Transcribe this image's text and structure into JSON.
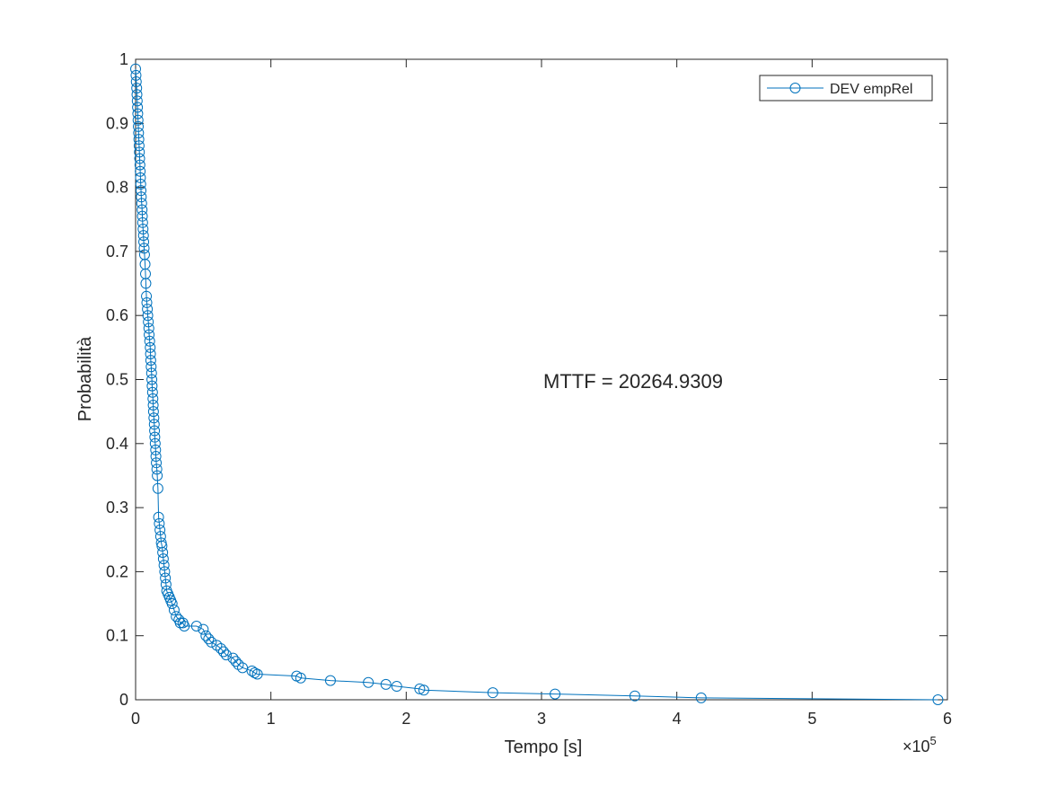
{
  "chart_data": {
    "type": "line",
    "xlabel": "Tempo [s]",
    "ylabel": "Probabilità",
    "x_exponent_label": "×10",
    "x_exponent": "5",
    "annotation": "MTTF = 20264.9309",
    "legend": {
      "label": "DEV empRel",
      "placement": "top-right"
    },
    "xlim": [
      0,
      6
    ],
    "ylim": [
      0,
      1
    ],
    "x_scale": 100000,
    "xticks": [
      0,
      1,
      2,
      3,
      4,
      5,
      6
    ],
    "yticks": [
      0,
      0.1,
      0.2,
      0.3,
      0.4,
      0.5,
      0.6,
      0.7,
      0.8,
      0.9,
      1
    ],
    "xtick_labels": [
      "0",
      "1",
      "2",
      "3",
      "4",
      "5",
      "6"
    ],
    "ytick_labels": [
      "0",
      "0.1",
      "0.2",
      "0.3",
      "0.4",
      "0.5",
      "0.6",
      "0.7",
      "0.8",
      "0.9",
      "1"
    ],
    "colors": {
      "series": "#0072BD",
      "axes": "#262626"
    },
    "grid": false,
    "series": [
      {
        "name": "DEV empRel",
        "marker": "circle",
        "x": [
          0,
          0.003,
          0.005,
          0.008,
          0.01,
          0.012,
          0.014,
          0.016,
          0.018,
          0.02,
          0.022,
          0.024,
          0.026,
          0.028,
          0.03,
          0.032,
          0.034,
          0.036,
          0.038,
          0.04,
          0.042,
          0.045,
          0.048,
          0.05,
          0.052,
          0.055,
          0.058,
          0.06,
          0.063,
          0.066,
          0.07,
          0.073,
          0.076,
          0.08,
          0.083,
          0.087,
          0.09,
          0.094,
          0.098,
          0.1,
          0.104,
          0.108,
          0.11,
          0.112,
          0.115,
          0.118,
          0.12,
          0.122,
          0.125,
          0.128,
          0.13,
          0.132,
          0.135,
          0.138,
          0.14,
          0.142,
          0.145,
          0.148,
          0.15,
          0.153,
          0.157,
          0.16,
          0.165,
          0.17,
          0.175,
          0.18,
          0.185,
          0.19,
          0.195,
          0.2,
          0.205,
          0.21,
          0.215,
          0.22,
          0.225,
          0.23,
          0.24,
          0.25,
          0.26,
          0.27,
          0.285,
          0.3,
          0.32,
          0.33,
          0.35,
          0.36,
          0.45,
          0.5,
          0.52,
          0.54,
          0.56,
          0.6,
          0.63,
          0.65,
          0.67,
          0.72,
          0.74,
          0.76,
          0.79,
          0.86,
          0.88,
          0.9,
          1.19,
          1.22,
          1.44,
          1.72,
          1.85,
          1.93,
          2.1,
          2.13,
          2.64,
          3.1,
          3.69,
          4.18,
          5.93
        ],
        "y": [
          0.985,
          0.975,
          0.965,
          0.955,
          0.945,
          0.935,
          0.925,
          0.915,
          0.905,
          0.895,
          0.885,
          0.875,
          0.865,
          0.855,
          0.845,
          0.835,
          0.825,
          0.815,
          0.805,
          0.795,
          0.785,
          0.775,
          0.765,
          0.755,
          0.745,
          0.735,
          0.725,
          0.715,
          0.705,
          0.695,
          0.68,
          0.665,
          0.65,
          0.63,
          0.62,
          0.61,
          0.6,
          0.59,
          0.58,
          0.57,
          0.56,
          0.55,
          0.54,
          0.53,
          0.52,
          0.51,
          0.5,
          0.49,
          0.48,
          0.47,
          0.46,
          0.45,
          0.44,
          0.43,
          0.42,
          0.41,
          0.4,
          0.39,
          0.38,
          0.37,
          0.36,
          0.35,
          0.33,
          0.285,
          0.275,
          0.265,
          0.255,
          0.245,
          0.24,
          0.23,
          0.22,
          0.21,
          0.2,
          0.19,
          0.18,
          0.17,
          0.165,
          0.16,
          0.155,
          0.15,
          0.14,
          0.13,
          0.125,
          0.12,
          0.12,
          0.115,
          0.115,
          0.11,
          0.1,
          0.095,
          0.09,
          0.085,
          0.08,
          0.075,
          0.07,
          0.065,
          0.06,
          0.055,
          0.05,
          0.045,
          0.042,
          0.04,
          0.037,
          0.034,
          0.03,
          0.027,
          0.024,
          0.021,
          0.017,
          0.015,
          0.011,
          0.009,
          0.006,
          0.003,
          0
        ]
      }
    ]
  }
}
